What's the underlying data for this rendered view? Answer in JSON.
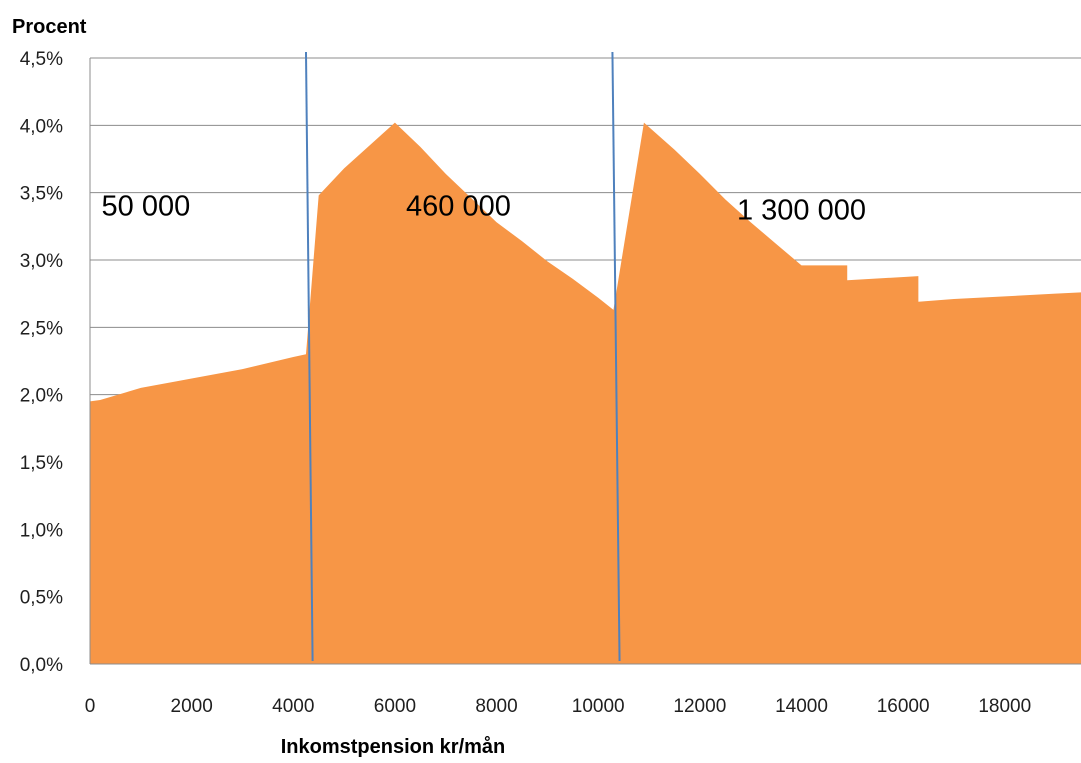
{
  "chart_data": {
    "type": "area",
    "title": "",
    "ylabel": "Procent",
    "xlabel": "Inkomstpension kr/mån",
    "xlim": [
      0,
      19500
    ],
    "ylim": [
      0,
      4.5
    ],
    "x_ticks": [
      0,
      2000,
      4000,
      6000,
      8000,
      10000,
      12000,
      14000,
      16000,
      18000
    ],
    "x_tick_labels": [
      "0",
      "2000",
      "4000",
      "6000",
      "8000",
      "10000",
      "12000",
      "14000",
      "16000",
      "18000"
    ],
    "y_ticks": [
      0,
      0.5,
      1.0,
      1.5,
      2.0,
      2.5,
      3.0,
      3.5,
      4.0,
      4.5
    ],
    "y_tick_labels": [
      "0,0%",
      "0,5%",
      "1,0%",
      "1,5%",
      "2,0%",
      "2,5%",
      "3,0%",
      "3,5%",
      "4,0%",
      "4,5%"
    ],
    "grid": "horizontal",
    "series": [
      {
        "color": "#f79646",
        "points": [
          [
            0,
            1.95
          ],
          [
            200,
            1.96
          ],
          [
            1000,
            2.05
          ],
          [
            2000,
            2.12
          ],
          [
            3000,
            2.19
          ],
          [
            4000,
            2.28
          ],
          [
            4250,
            2.3
          ],
          [
            4500,
            3.48
          ],
          [
            5000,
            3.68
          ],
          [
            5500,
            3.85
          ],
          [
            6000,
            4.02
          ],
          [
            6500,
            3.84
          ],
          [
            7000,
            3.64
          ],
          [
            7500,
            3.46
          ],
          [
            8000,
            3.28
          ],
          [
            8500,
            3.14
          ],
          [
            9000,
            2.99
          ],
          [
            9500,
            2.86
          ],
          [
            10000,
            2.72
          ],
          [
            10300,
            2.63
          ],
          [
            10900,
            4.02
          ],
          [
            11500,
            3.82
          ],
          [
            12000,
            3.64
          ],
          [
            12500,
            3.45
          ],
          [
            13000,
            3.28
          ],
          [
            13500,
            3.12
          ],
          [
            14000,
            2.96
          ],
          [
            14900,
            2.96
          ],
          [
            14900,
            2.85
          ],
          [
            16300,
            2.88
          ],
          [
            16300,
            2.69
          ],
          [
            17000,
            2.71
          ],
          [
            18000,
            2.73
          ],
          [
            19000,
            2.75
          ],
          [
            19500,
            2.76
          ]
        ]
      }
    ],
    "vertical_lines": [
      {
        "x_top": 4250,
        "x_bottom": 4380,
        "color": "#4f81bd"
      },
      {
        "x_top": 10280,
        "x_bottom": 10420,
        "color": "#4f81bd"
      }
    ],
    "annotations": [
      {
        "text": "50 000",
        "x": 1100,
        "y": 3.33
      },
      {
        "text": "460 000",
        "x": 7250,
        "y": 3.33
      },
      {
        "text": "1 300 000",
        "x": 14000,
        "y": 3.3
      }
    ]
  }
}
